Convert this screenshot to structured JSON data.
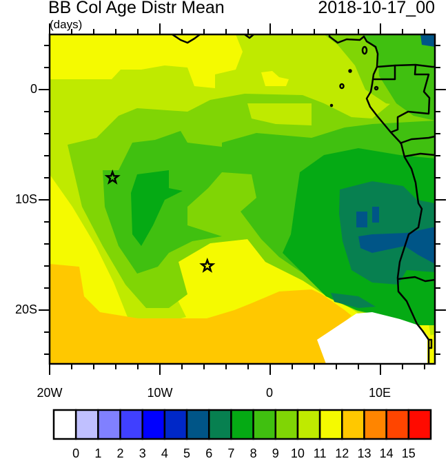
{
  "header": {
    "title": "BB Col Age Distr Mean",
    "units": "(days)",
    "date": "2018-10-17_00"
  },
  "axes": {
    "lat_labels": [
      "0",
      "10S",
      "20S"
    ],
    "lon_labels": [
      "20W",
      "10W",
      "0",
      "10E"
    ],
    "lat_range": [
      5,
      -25
    ],
    "lon_range": [
      -20,
      15
    ]
  },
  "colorbar": {
    "labels": [
      "0",
      "1",
      "2",
      "3",
      "4",
      "5",
      "6",
      "7",
      "8",
      "9",
      "10",
      "11",
      "12",
      "13",
      "14",
      "15"
    ],
    "colors": [
      "#ffffff",
      "#c0c0ff",
      "#8080ff",
      "#4040ff",
      "#0000ff",
      "#0028c8",
      "#005587",
      "#078050",
      "#05aa14",
      "#40c010",
      "#80d505",
      "#bfea00",
      "#f5fa00",
      "#ffc800",
      "#ff8500",
      "#ff4500",
      "#ff0a00"
    ]
  },
  "markers": {
    "icon": "star-icon",
    "locations": [
      [
        -14.3,
        -8.0
      ],
      [
        -5.7,
        -16.0
      ]
    ]
  }
}
